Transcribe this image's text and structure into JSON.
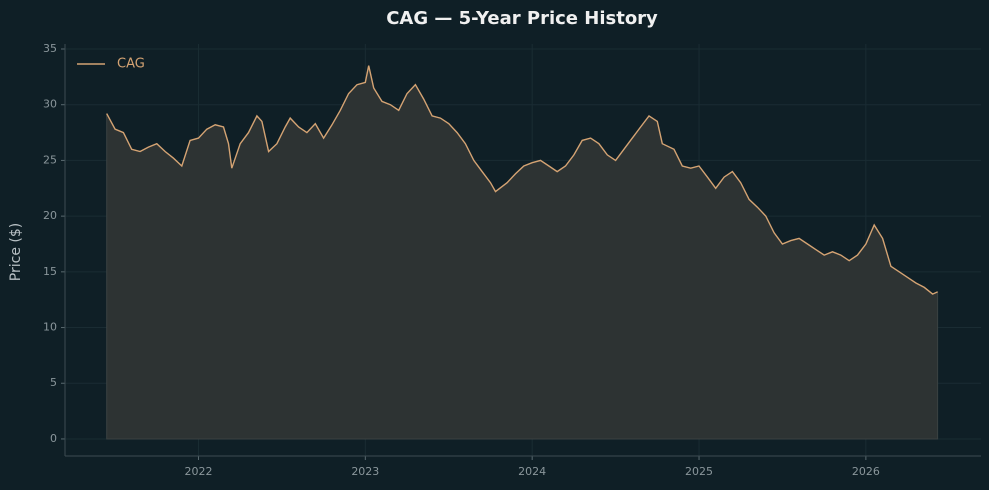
{
  "chart_data": {
    "type": "area-line",
    "title": "CAG — 5-Year Price History",
    "ylabel": "Price ($)",
    "x": [
      2021.45,
      2021.5,
      2021.55,
      2021.6,
      2021.65,
      2021.7,
      2021.75,
      2021.8,
      2021.85,
      2021.9,
      2021.95,
      2022.0,
      2022.05,
      2022.1,
      2022.15,
      2022.18,
      2022.2,
      2022.25,
      2022.3,
      2022.35,
      2022.38,
      2022.42,
      2022.47,
      2022.52,
      2022.55,
      2022.6,
      2022.65,
      2022.7,
      2022.75,
      2022.8,
      2022.85,
      2022.9,
      2022.95,
      2023.0,
      2023.02,
      2023.05,
      2023.1,
      2023.15,
      2023.2,
      2023.25,
      2023.3,
      2023.35,
      2023.4,
      2023.45,
      2023.5,
      2023.55,
      2023.6,
      2023.65,
      2023.7,
      2023.75,
      2023.78,
      2023.85,
      2023.9,
      2023.95,
      2024.0,
      2024.05,
      2024.1,
      2024.15,
      2024.2,
      2024.25,
      2024.3,
      2024.35,
      2024.4,
      2024.45,
      2024.5,
      2024.55,
      2024.6,
      2024.65,
      2024.7,
      2024.75,
      2024.78,
      2024.85,
      2024.9,
      2024.95,
      2025.0,
      2025.05,
      2025.1,
      2025.15,
      2025.2,
      2025.25,
      2025.3,
      2025.35,
      2025.4,
      2025.45,
      2025.5,
      2025.55,
      2025.6,
      2025.65,
      2025.7,
      2025.75,
      2025.8,
      2025.85,
      2025.9,
      2025.95,
      2026.0,
      2026.05,
      2026.1,
      2026.15,
      2026.2,
      2026.25,
      2026.3,
      2026.35,
      2026.4,
      2026.43
    ],
    "series": [
      {
        "name": "CAG",
        "color": "#d4a373",
        "area_color": "#2d3333",
        "values": [
          29.2,
          27.8,
          27.5,
          26.0,
          25.8,
          26.2,
          26.5,
          25.8,
          25.2,
          24.5,
          26.8,
          27.0,
          27.8,
          28.2,
          28.0,
          26.5,
          24.3,
          26.5,
          27.5,
          29.0,
          28.5,
          25.8,
          26.5,
          28.0,
          28.8,
          28.0,
          27.5,
          28.3,
          27.0,
          28.2,
          29.5,
          31.0,
          31.8,
          32.0,
          33.5,
          31.5,
          30.3,
          30.0,
          29.5,
          31.0,
          31.8,
          30.5,
          29.0,
          28.8,
          28.3,
          27.5,
          26.5,
          25.0,
          24.0,
          23.0,
          22.2,
          23.0,
          23.8,
          24.5,
          24.8,
          25.0,
          24.5,
          24.0,
          24.5,
          25.5,
          26.8,
          27.0,
          26.5,
          25.5,
          25.0,
          26.0,
          27.0,
          28.0,
          29.0,
          28.5,
          26.5,
          26.0,
          24.5,
          24.3,
          24.5,
          23.5,
          22.5,
          23.5,
          24.0,
          23.0,
          21.5,
          20.8,
          20.0,
          18.5,
          17.5,
          17.8,
          18.0,
          17.5,
          17.0,
          16.5,
          16.8,
          16.5,
          16.0,
          16.5,
          17.5,
          19.2,
          18.0,
          15.5,
          15.0,
          14.5,
          14.0,
          13.6,
          13.0,
          13.2
        ]
      }
    ],
    "xlim": [
      2021.2,
      2026.69
    ],
    "xticks": [
      2022,
      2023,
      2024,
      2025,
      2026
    ],
    "ylim": [
      -1.53,
      35.45
    ],
    "yticks": [
      0,
      5,
      10,
      15,
      20,
      25,
      30,
      35
    ],
    "grid": true,
    "legend": "upper left"
  }
}
